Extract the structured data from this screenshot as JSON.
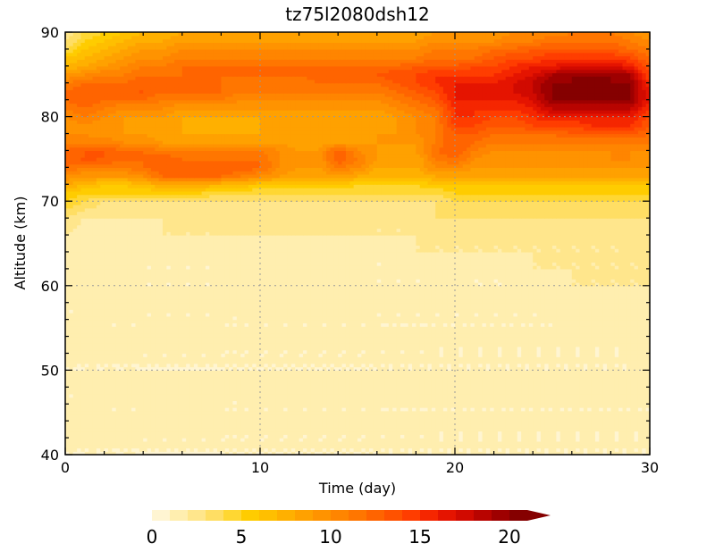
{
  "chart_data": {
    "type": "heatmap",
    "title": "tz75l2080dsh12",
    "xlabel": "Time (day)",
    "ylabel": "Altitude (km)",
    "xlim": [
      0,
      30
    ],
    "ylim": [
      40,
      90
    ],
    "x_ticks": [
      0,
      10,
      20,
      30
    ],
    "y_ticks": [
      40,
      50,
      60,
      70,
      80,
      90
    ],
    "grid": true,
    "grid_x": [
      10,
      20
    ],
    "grid_y": [
      50,
      60,
      70,
      80
    ],
    "colorbar": {
      "min": 0,
      "max": 20,
      "step": 1,
      "extend": "max",
      "tick_values": [
        0,
        5,
        10,
        15,
        20
      ],
      "colors": [
        "#fff5d2",
        "#ffeeaf",
        "#ffe68c",
        "#ffde64",
        "#ffd732",
        "#ffcc00",
        "#ffbf00",
        "#ffb000",
        "#ffa100",
        "#ff9300",
        "#ff8500",
        "#ff7600",
        "#ff6400",
        "#ff5200",
        "#ff3d00",
        "#f52600",
        "#e51400",
        "#d10a00",
        "#b80400",
        "#9e0000",
        "#850000"
      ]
    },
    "x": [
      0,
      1,
      2,
      3,
      4,
      5,
      6,
      7,
      8,
      9,
      10,
      11,
      12,
      13,
      14,
      15,
      16,
      17,
      18,
      19,
      20,
      21,
      22,
      23,
      24,
      25,
      26,
      27,
      28,
      29,
      30
    ],
    "y": [
      40,
      45,
      50,
      55,
      60,
      62,
      64,
      66,
      68,
      70,
      71,
      72,
      73,
      74,
      75,
      76,
      77,
      78,
      79,
      80,
      81,
      82,
      83,
      84,
      85,
      86,
      87,
      88,
      89,
      90
    ],
    "z": [
      [
        1,
        1,
        1,
        1,
        1,
        1,
        1,
        1,
        1,
        1,
        1,
        1,
        1,
        1,
        1,
        1,
        1,
        1,
        1,
        1,
        1,
        1,
        1,
        1,
        1,
        1,
        1,
        1,
        1,
        1,
        1
      ],
      [
        1,
        1,
        1,
        1,
        1,
        1,
        1,
        1,
        1,
        1,
        1,
        1,
        1,
        1,
        1,
        1,
        1,
        1,
        1,
        1,
        1,
        1,
        1,
        1,
        1,
        1,
        1,
        1,
        1,
        1,
        1
      ],
      [
        1,
        1,
        1,
        1,
        1,
        1,
        1,
        1,
        1,
        1,
        1,
        1,
        1,
        1,
        1,
        1,
        1,
        1,
        1,
        1,
        1,
        1,
        1,
        1,
        1,
        1,
        1,
        1,
        1,
        1,
        1
      ],
      [
        1,
        1,
        1,
        1,
        1,
        1,
        1,
        1,
        1,
        1,
        1,
        1,
        1,
        1,
        1,
        1,
        1,
        1,
        1,
        1,
        1,
        1,
        1,
        1,
        1,
        1,
        1,
        1,
        1,
        1,
        2
      ],
      [
        1,
        1,
        1,
        1,
        1,
        1,
        1,
        1,
        1,
        1,
        1,
        1,
        1,
        1,
        1,
        1,
        1,
        1,
        1,
        1,
        1,
        1,
        1,
        1,
        1,
        1,
        2,
        2,
        2,
        2,
        2
      ],
      [
        1,
        1,
        1,
        1,
        1,
        1,
        1,
        1,
        1,
        1,
        1,
        1,
        1,
        1,
        1,
        1,
        1,
        1,
        1,
        1,
        2,
        1,
        1,
        1,
        2,
        2,
        2,
        2,
        2,
        2,
        2
      ],
      [
        1,
        1,
        1,
        1,
        1,
        1,
        1,
        1,
        1,
        1,
        1,
        1,
        1,
        1,
        1,
        1,
        1,
        1,
        2,
        2,
        2,
        2,
        2,
        2,
        2,
        2,
        2,
        2,
        2,
        2,
        2
      ],
      [
        2,
        1,
        1,
        1,
        1,
        2,
        2,
        2,
        2,
        2,
        2,
        2,
        2,
        2,
        2,
        2,
        2,
        2,
        2,
        2,
        2,
        2,
        2,
        2,
        2,
        2,
        2,
        2,
        2,
        2,
        3
      ],
      [
        3,
        2,
        2,
        2,
        2,
        2,
        2,
        2,
        2,
        2,
        2,
        2,
        2,
        2,
        2,
        2,
        2,
        2,
        2,
        3,
        3,
        3,
        3,
        3,
        3,
        3,
        3,
        3,
        3,
        3,
        3
      ],
      [
        5,
        4,
        3,
        3,
        3,
        3,
        3,
        3,
        3,
        3,
        3,
        3,
        3,
        3,
        3,
        3,
        3,
        3,
        3,
        3,
        4,
        4,
        4,
        4,
        4,
        4,
        4,
        4,
        4,
        4,
        4
      ],
      [
        6,
        5,
        5,
        5,
        5,
        5,
        5,
        5,
        4,
        4,
        4,
        4,
        4,
        4,
        4,
        4,
        4,
        4,
        4,
        4,
        5,
        5,
        5,
        5,
        5,
        5,
        5,
        5,
        5,
        5,
        5
      ],
      [
        8,
        7,
        6,
        6,
        7,
        8,
        8,
        8,
        7,
        7,
        6,
        6,
        6,
        6,
        6,
        5,
        5,
        5,
        5,
        6,
        6,
        6,
        6,
        6,
        6,
        6,
        6,
        6,
        6,
        6,
        6
      ],
      [
        10,
        9,
        9,
        9,
        10,
        12,
        12,
        12,
        12,
        11,
        10,
        9,
        8,
        8,
        9,
        8,
        7,
        7,
        7,
        8,
        8,
        8,
        8,
        8,
        8,
        8,
        8,
        8,
        8,
        8,
        8
      ],
      [
        12,
        11,
        11,
        11,
        12,
        13,
        13,
        13,
        13,
        13,
        12,
        10,
        9,
        9,
        11,
        10,
        8,
        8,
        8,
        10,
        10,
        9,
        9,
        9,
        9,
        9,
        9,
        9,
        9,
        9,
        9
      ],
      [
        13,
        13,
        13,
        12,
        12,
        13,
        12,
        12,
        12,
        12,
        12,
        10,
        9,
        9,
        13,
        11,
        9,
        8,
        8,
        11,
        12,
        10,
        9,
        9,
        9,
        9,
        9,
        9,
        10,
        10,
        9
      ],
      [
        12,
        13,
        13,
        12,
        12,
        11,
        11,
        11,
        11,
        11,
        11,
        10,
        9,
        9,
        13,
        10,
        9,
        8,
        9,
        12,
        13,
        11,
        10,
        10,
        10,
        10,
        10,
        10,
        10,
        10,
        10
      ],
      [
        11,
        11,
        11,
        10,
        10,
        9,
        9,
        9,
        9,
        9,
        9,
        9,
        8,
        8,
        9,
        9,
        9,
        9,
        9,
        11,
        13,
        12,
        11,
        11,
        11,
        11,
        11,
        11,
        11,
        11,
        11
      ],
      [
        10,
        10,
        9,
        9,
        9,
        8,
        8,
        8,
        8,
        8,
        8,
        8,
        8,
        8,
        8,
        8,
        9,
        9,
        10,
        11,
        13,
        13,
        12,
        12,
        12,
        12,
        13,
        13,
        13,
        13,
        12
      ],
      [
        9,
        10,
        9,
        9,
        8,
        8,
        8,
        7,
        7,
        7,
        8,
        8,
        8,
        8,
        8,
        8,
        8,
        9,
        10,
        11,
        14,
        14,
        13,
        13,
        14,
        14,
        14,
        15,
        15,
        15,
        13
      ],
      [
        10,
        11,
        10,
        9,
        9,
        9,
        8,
        8,
        8,
        8,
        8,
        8,
        8,
        8,
        8,
        8,
        8,
        9,
        10,
        11,
        15,
        15,
        14,
        14,
        15,
        16,
        16,
        16,
        16,
        16,
        14
      ],
      [
        11,
        12,
        11,
        10,
        10,
        10,
        9,
        9,
        9,
        9,
        9,
        9,
        9,
        9,
        9,
        9,
        9,
        10,
        11,
        12,
        15,
        15,
        15,
        15,
        16,
        18,
        18,
        18,
        18,
        18,
        15
      ],
      [
        12,
        13,
        12,
        12,
        12,
        11,
        11,
        11,
        11,
        10,
        10,
        10,
        10,
        10,
        10,
        10,
        10,
        11,
        12,
        13,
        16,
        16,
        16,
        16,
        17,
        20,
        20,
        20,
        20,
        20,
        16
      ],
      [
        12,
        13,
        13,
        13,
        13,
        12,
        12,
        12,
        12,
        11,
        11,
        11,
        11,
        11,
        11,
        11,
        11,
        12,
        13,
        14,
        16,
        16,
        16,
        17,
        18,
        20,
        20,
        20,
        20,
        20,
        16
      ],
      [
        11,
        12,
        12,
        12,
        13,
        12,
        12,
        12,
        12,
        11,
        11,
        11,
        11,
        12,
        12,
        12,
        12,
        13,
        14,
        15,
        16,
        16,
        16,
        17,
        18,
        20,
        20,
        20,
        20,
        20,
        15
      ],
      [
        9,
        10,
        11,
        11,
        12,
        12,
        12,
        12,
        12,
        12,
        12,
        12,
        12,
        13,
        13,
        13,
        13,
        14,
        14,
        15,
        15,
        15,
        15,
        16,
        17,
        19,
        20,
        20,
        20,
        19,
        14
      ],
      [
        7,
        8,
        9,
        10,
        11,
        11,
        12,
        12,
        12,
        12,
        12,
        12,
        12,
        12,
        12,
        12,
        12,
        12,
        13,
        13,
        13,
        14,
        14,
        15,
        16,
        16,
        17,
        17,
        17,
        16,
        13
      ],
      [
        6,
        7,
        8,
        9,
        10,
        10,
        11,
        11,
        11,
        11,
        11,
        11,
        11,
        11,
        11,
        11,
        11,
        11,
        11,
        12,
        12,
        12,
        13,
        14,
        14,
        15,
        15,
        15,
        15,
        14,
        12
      ],
      [
        4,
        6,
        7,
        8,
        9,
        9,
        10,
        10,
        10,
        10,
        10,
        10,
        10,
        10,
        10,
        10,
        10,
        10,
        10,
        11,
        11,
        11,
        12,
        12,
        13,
        13,
        13,
        13,
        13,
        12,
        11
      ],
      [
        3,
        5,
        6,
        7,
        8,
        8,
        9,
        9,
        9,
        9,
        9,
        9,
        9,
        9,
        9,
        9,
        9,
        9,
        9,
        10,
        10,
        10,
        10,
        11,
        11,
        12,
        12,
        12,
        12,
        11,
        10
      ],
      [
        2,
        4,
        5,
        6,
        7,
        7,
        8,
        8,
        8,
        8,
        8,
        8,
        8,
        8,
        8,
        8,
        8,
        8,
        8,
        9,
        9,
        9,
        9,
        10,
        10,
        10,
        11,
        11,
        11,
        10,
        9
      ]
    ]
  }
}
